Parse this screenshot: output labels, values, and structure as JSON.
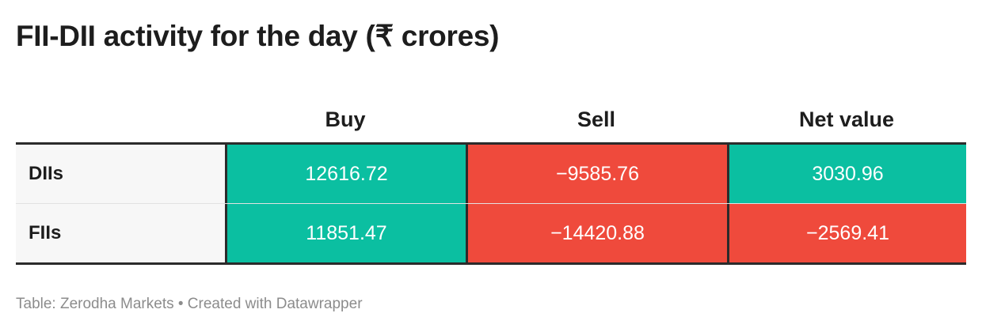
{
  "title": "FII-DII activity for the day (₹ crores)",
  "footer": "Table: Zerodha Markets • Created with Datawrapper",
  "colors": {
    "positive": "#0bbfa1",
    "negative": "#ef4a3c"
  },
  "chart_data": {
    "type": "table",
    "title": "FII-DII activity for the day (₹ crores)",
    "columns": [
      "",
      "Buy",
      "Sell",
      "Net value"
    ],
    "rows": [
      {
        "label": "DIIs",
        "buy": 12616.72,
        "sell": -9585.76,
        "net": 3030.96,
        "buy_text": "12616.72",
        "sell_text": "−9585.76",
        "net_text": "3030.96"
      },
      {
        "label": "FIIs",
        "buy": 11851.47,
        "sell": -14420.88,
        "net": -2569.41,
        "buy_text": "11851.47",
        "sell_text": "−14420.88",
        "net_text": "−2569.41"
      }
    ]
  }
}
